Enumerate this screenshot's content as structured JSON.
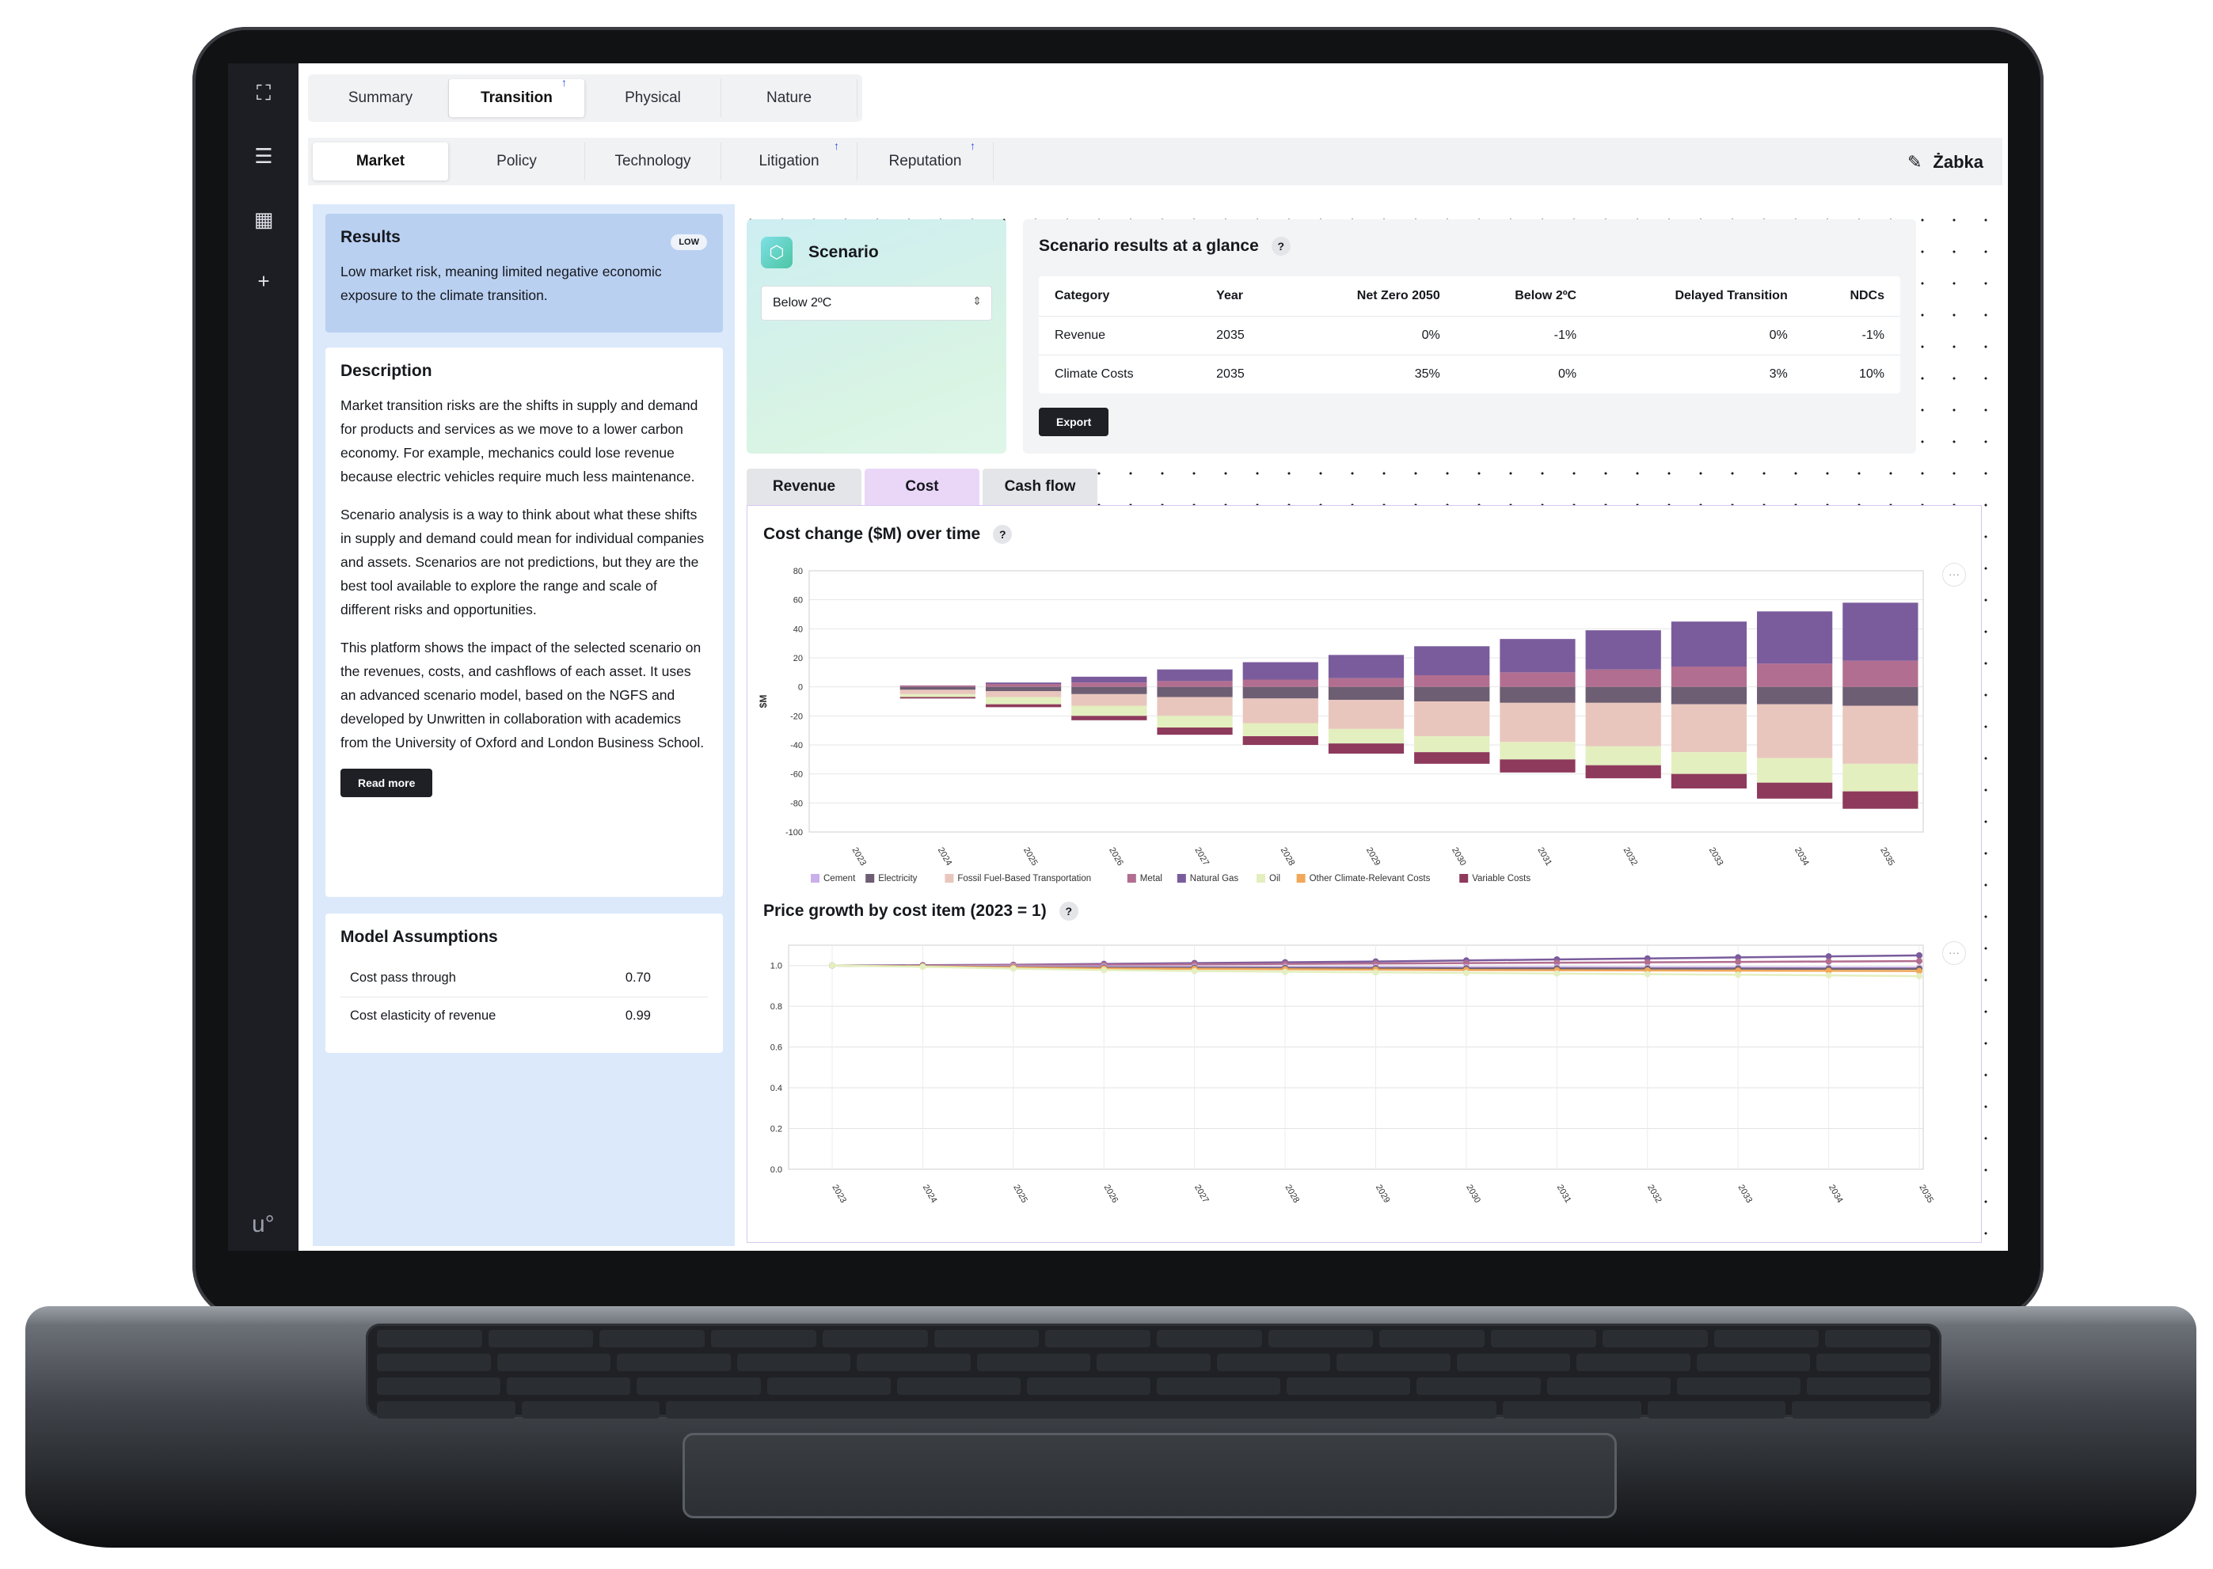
{
  "top_tabs": [
    {
      "label": "Summary",
      "active": false,
      "flag": false
    },
    {
      "label": "Transition",
      "active": true,
      "flag": true
    },
    {
      "label": "Physical",
      "active": false,
      "flag": false
    },
    {
      "label": "Nature",
      "active": false,
      "flag": false
    }
  ],
  "sub_tabs": [
    {
      "label": "Market",
      "active": true,
      "flag": false
    },
    {
      "label": "Policy",
      "active": false,
      "flag": false
    },
    {
      "label": "Technology",
      "active": false,
      "flag": false
    },
    {
      "label": "Litigation",
      "active": false,
      "flag": true
    },
    {
      "label": "Reputation",
      "active": false,
      "flag": true
    }
  ],
  "brand": {
    "name": "Żabka",
    "edit_icon": "edit-icon"
  },
  "rail": {
    "icons": [
      "expand-icon",
      "list-icon",
      "grid-icon",
      "plus-icon"
    ],
    "logo": "u°"
  },
  "results": {
    "title": "Results",
    "badge": "LOW",
    "text": "Low market risk, meaning limited negative economic exposure to the climate transition."
  },
  "description": {
    "title": "Description",
    "paragraphs": [
      "Market transition risks are the shifts in supply and demand for products and services as we move to a lower carbon economy. For example, mechanics could lose revenue because electric vehicles require much less maintenance.",
      "Scenario analysis is a way to think about what these shifts in supply and demand could mean for individual companies and assets. Scenarios are not predictions, but they are the best tool available to explore the range and scale of different risks and opportunities.",
      "This platform shows the impact of the selected scenario on the revenues, costs, and cashflows of each asset. It uses an advanced scenario model, based on the NGFS and developed by Unwritten in collaboration with academics from the University of Oxford and London Business School."
    ],
    "button": "Read more"
  },
  "assumptions": {
    "title": "Model Assumptions",
    "rows": [
      {
        "label": "Cost pass through",
        "value": "0.70"
      },
      {
        "label": "Cost elasticity of revenue",
        "value": "0.99"
      }
    ]
  },
  "scenario": {
    "title": "Scenario",
    "selected": "Below 2ºC"
  },
  "glance": {
    "title": "Scenario results at a glance",
    "help": "?",
    "columns": [
      "Category",
      "Year",
      "Net Zero 2050",
      "Below 2ºC",
      "Delayed Transition",
      "NDCs"
    ],
    "rows": [
      [
        "Revenue",
        "2035",
        "0%",
        "-1%",
        "0%",
        "-1%"
      ],
      [
        "Climate Costs",
        "2035",
        "35%",
        "0%",
        "3%",
        "10%"
      ]
    ],
    "export": "Export"
  },
  "chart_tabs": [
    {
      "label": "Revenue",
      "active": false
    },
    {
      "label": "Cost",
      "active": true
    },
    {
      "label": "Cash flow",
      "active": false
    }
  ],
  "colors": {
    "Cement": "#c9b0ea",
    "Electricity": "#6d5e73",
    "Fossil Fuel-Based Transportation": "#e9c6bd",
    "Metal": "#b26e90",
    "Natural Gas": "#7a5c9c",
    "Oil": "#e3efbf",
    "Other Climate-Relevant Costs": "#f0a85a",
    "Variable Costs": "#8e3a5c"
  },
  "chart_data": [
    {
      "type": "bar",
      "stacked": true,
      "title": "Cost change ($M) over time",
      "help": "?",
      "xlabel": "",
      "ylabel": "$M",
      "ylim": [
        -100,
        80
      ],
      "yticks": [
        80,
        60,
        40,
        20,
        0,
        -20,
        -40,
        -60,
        -80,
        -100
      ],
      "grid": true,
      "legend_position": "bottom",
      "categories": [
        "2023",
        "2024",
        "2025",
        "2026",
        "2027",
        "2028",
        "2029",
        "2030",
        "2031",
        "2032",
        "2033",
        "2034",
        "2035"
      ],
      "series": [
        {
          "name": "Cement",
          "values": [
            0,
            0,
            0,
            0,
            0,
            0,
            0,
            0,
            0,
            0,
            0,
            0,
            0
          ]
        },
        {
          "name": "Electricity",
          "values": [
            0,
            -2,
            -3,
            -5,
            -7,
            -8,
            -9,
            -10,
            -11,
            -11,
            -12,
            -12,
            -13
          ]
        },
        {
          "name": "Fossil Fuel-Based Transportation",
          "values": [
            0,
            -3,
            -4,
            -8,
            -13,
            -17,
            -20,
            -24,
            -27,
            -30,
            -33,
            -37,
            -40
          ]
        },
        {
          "name": "Metal",
          "values": [
            0,
            1,
            2,
            3,
            4,
            5,
            6,
            8,
            10,
            12,
            14,
            16,
            18
          ]
        },
        {
          "name": "Natural Gas",
          "values": [
            0,
            0,
            1,
            4,
            8,
            12,
            16,
            20,
            23,
            27,
            31,
            36,
            40
          ]
        },
        {
          "name": "Oil",
          "values": [
            0,
            -2,
            -5,
            -7,
            -8,
            -9,
            -10,
            -11,
            -12,
            -13,
            -15,
            -17,
            -19
          ]
        },
        {
          "name": "Other Climate-Relevant Costs",
          "values": [
            0,
            0,
            0,
            0,
            0,
            0,
            0,
            0,
            0,
            0,
            0,
            0,
            0
          ]
        },
        {
          "name": "Variable Costs",
          "values": [
            0,
            -1,
            -2,
            -3,
            -5,
            -6,
            -7,
            -8,
            -9,
            -9,
            -10,
            -11,
            -12
          ]
        }
      ]
    },
    {
      "type": "line",
      "title": "Price growth by cost item (2023 = 1)",
      "help": "?",
      "xlabel": "",
      "ylabel": "",
      "ylim": [
        0,
        1.1
      ],
      "yticks": [
        "1.0",
        "0.8",
        "0.6",
        "0.4",
        "0.2",
        "0.0"
      ],
      "grid": true,
      "x": [
        "2023",
        "2024",
        "2025",
        "2026",
        "2027",
        "2028",
        "2029",
        "2030",
        "2031",
        "2032",
        "2033",
        "2034",
        "2035"
      ],
      "series": [
        {
          "name": "Natural Gas",
          "values": [
            1.0,
            1.002,
            1.004,
            1.008,
            1.012,
            1.016,
            1.02,
            1.025,
            1.03,
            1.035,
            1.04,
            1.045,
            1.05
          ]
        },
        {
          "name": "Metal",
          "values": [
            1.0,
            1.0,
            1.002,
            1.004,
            1.006,
            1.008,
            1.01,
            1.012,
            1.014,
            1.016,
            1.018,
            1.02,
            1.022
          ]
        },
        {
          "name": "Cement",
          "values": [
            1.0,
            0.998,
            0.996,
            0.995,
            0.994,
            0.993,
            0.993,
            0.992,
            0.992,
            0.991,
            0.991,
            0.99,
            0.99
          ]
        },
        {
          "name": "Electricity",
          "values": [
            1.0,
            0.997,
            0.992,
            0.99,
            0.989,
            0.988,
            0.987,
            0.986,
            0.986,
            0.985,
            0.985,
            0.984,
            0.984
          ]
        },
        {
          "name": "Other Climate-Relevant Costs",
          "values": [
            1.0,
            0.996,
            0.99,
            0.986,
            0.984,
            0.982,
            0.98,
            0.978,
            0.977,
            0.976,
            0.975,
            0.974,
            0.973
          ]
        },
        {
          "name": "Oil",
          "values": [
            1.0,
            0.994,
            0.985,
            0.978,
            0.973,
            0.97,
            0.967,
            0.964,
            0.961,
            0.958,
            0.955,
            0.952,
            0.948
          ]
        }
      ]
    }
  ]
}
